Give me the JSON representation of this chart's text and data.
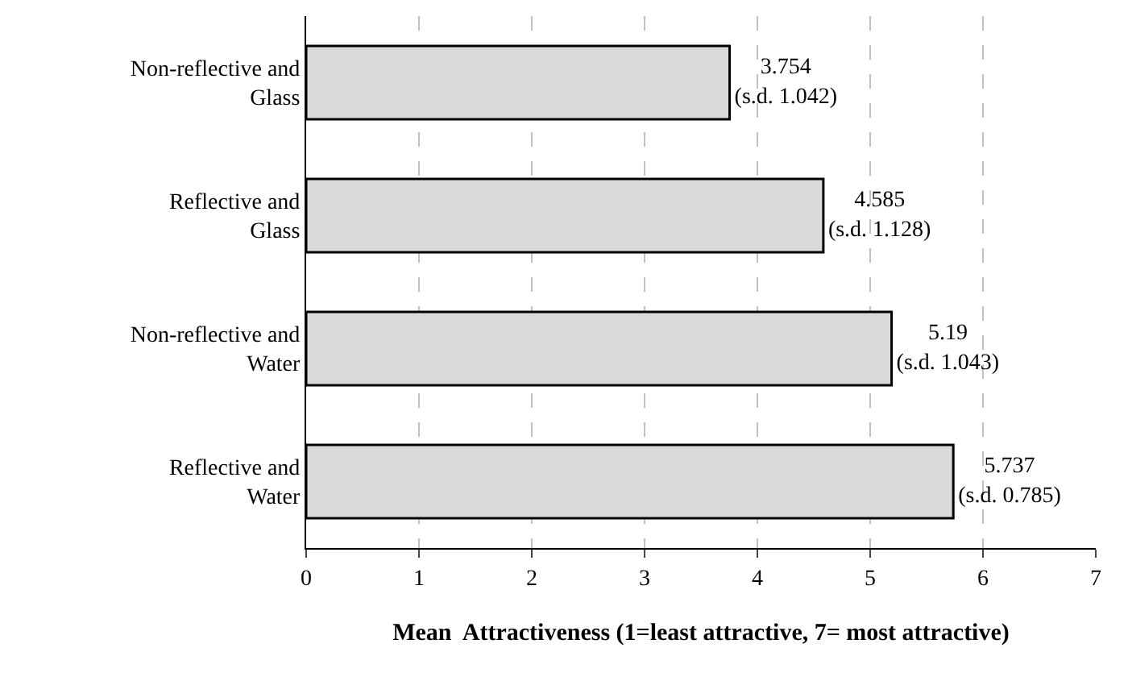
{
  "chart_data": {
    "type": "bar",
    "orientation": "horizontal",
    "categories": [
      "Non-reflective and Glass",
      "Reflective and Glass",
      "Non-reflective and Water",
      "Reflective and Water"
    ],
    "values": [
      3.754,
      4.585,
      5.19,
      5.737
    ],
    "value_labels": [
      "3.754\n(s.d. 1.042)",
      "4.585\n(s.d. 1.128)",
      "5.19\n(s.d. 1.043)",
      "5.737\n(s.d. 0.785)"
    ],
    "color": "#d9d9d9",
    "xlabel": "Mean  Attractiveness (1=least attractive, 7= most attractive)",
    "xlim": [
      0,
      7
    ],
    "xticks": [
      0,
      1,
      2,
      3,
      4,
      5,
      6,
      7
    ],
    "grid": "x",
    "legend": false
  }
}
